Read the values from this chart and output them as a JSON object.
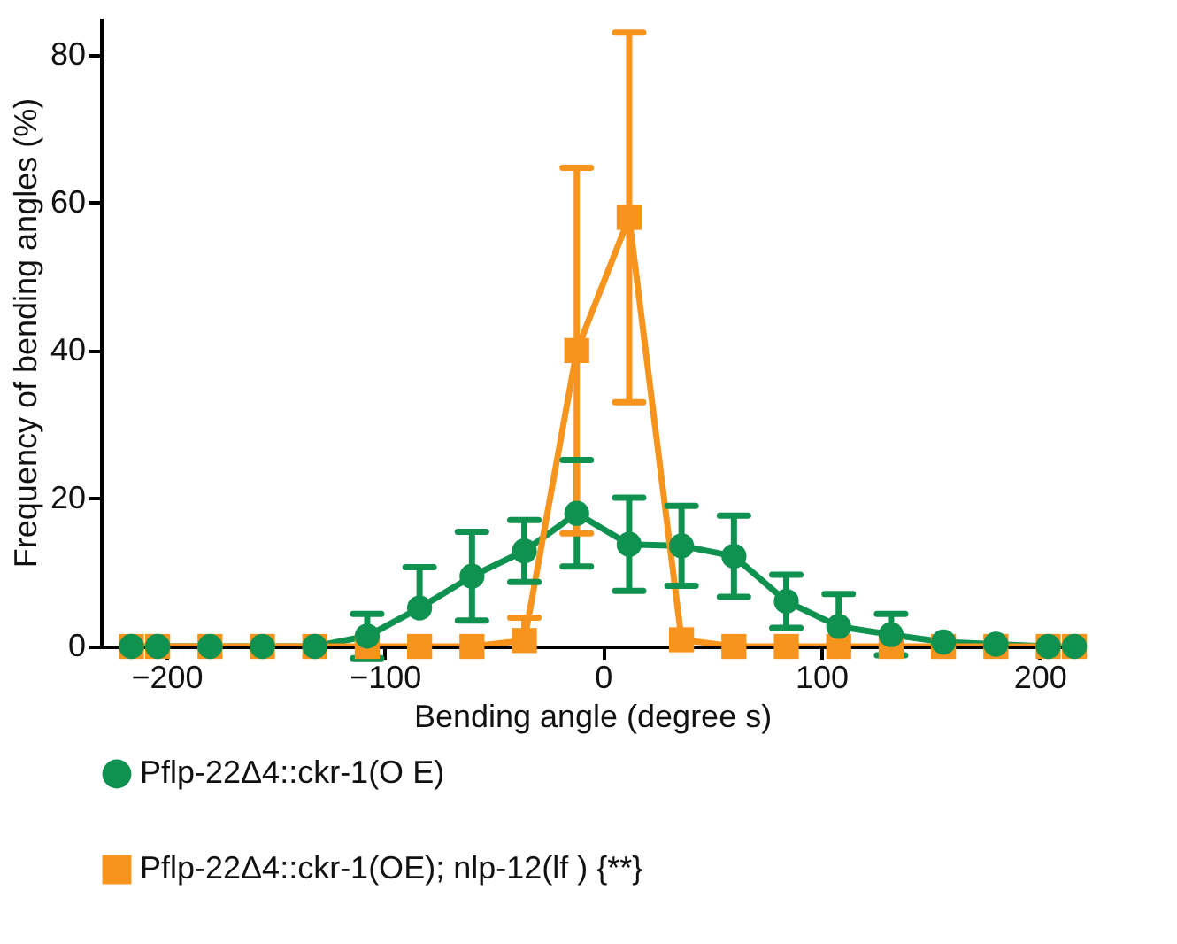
{
  "chart_data": {
    "type": "line",
    "xlabel": "Bending angle (degree    s)",
    "ylabel": "Frequency of bending angles (%)",
    "x": [
      -216,
      -204,
      -180,
      -156,
      -132,
      -108,
      -84,
      -60,
      -36,
      -12,
      12,
      36,
      60,
      84,
      108,
      132,
      156,
      180,
      204,
      216
    ],
    "series": [
      {
        "name": "Pflp-22Δ4::ckr-1(O    E)",
        "color": "#0f9150",
        "marker": "circle",
        "values": [
          0,
          0,
          0,
          0,
          0,
          1.4,
          5.2,
          9.5,
          12.9,
          18,
          13.8,
          13.6,
          12.2,
          6.1,
          2.7,
          1.6,
          0.6,
          0.3,
          0,
          0
        ],
        "errors": [
          null,
          null,
          null,
          null,
          null,
          3,
          [
            5.2,
            10.7
          ],
          6,
          4.2,
          7.2,
          6.3,
          5.4,
          5.5,
          3.6,
          [
            2.7,
            7.1
          ],
          2.8,
          null,
          null,
          null,
          null
        ]
      },
      {
        "name": "Pflp-22Δ4::ckr-1(OE); nlp-12(lf      ) {**}",
        "color": "#f7941d",
        "marker": "square",
        "values": [
          0,
          0,
          0,
          0,
          0,
          0,
          0,
          0,
          0.8,
          40,
          58,
          0.9,
          0,
          0,
          0,
          0,
          0,
          0,
          0,
          0
        ],
        "errors": [
          null,
          null,
          null,
          null,
          null,
          null,
          null,
          null,
          [
            0.8,
            3.9
          ],
          24.7,
          25,
          null,
          null,
          null,
          null,
          null,
          null,
          null,
          null,
          null
        ]
      }
    ],
    "xlim": [
      -230,
      220
    ],
    "xticks": [
      -200,
      -100,
      0,
      100,
      200
    ],
    "ylim": [
      0,
      85
    ],
    "yticks": [
      0,
      20,
      40,
      60,
      80
    ],
    "grid": false,
    "legend": "bottom left",
    "line_style": "solid"
  }
}
